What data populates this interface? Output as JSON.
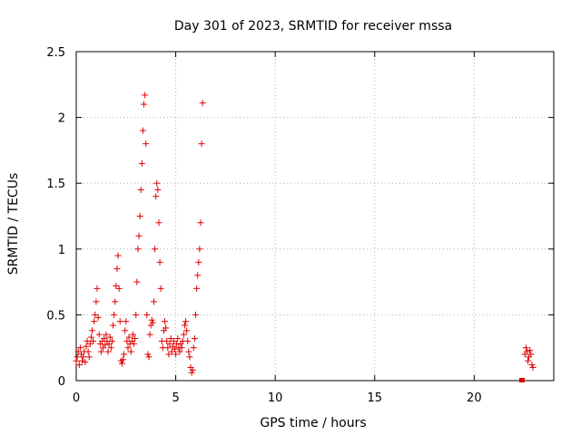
{
  "chart_data": {
    "type": "scatter",
    "title": "Day 301 of 2023, SRMTID for receiver mssa",
    "xlabel": "GPS time / hours",
    "ylabel": "SRMTID / TECUs",
    "xlim": [
      0,
      24
    ],
    "ylim": [
      0,
      2.5
    ],
    "xticks": [
      0,
      5,
      10,
      15,
      20
    ],
    "xtick_labels": [
      "0",
      "5",
      "10",
      "15",
      "20"
    ],
    "yticks": [
      0,
      0.5,
      1,
      1.5,
      2,
      2.5
    ],
    "ytick_labels": [
      "0",
      "0.5",
      "1",
      "1.5",
      "2",
      "2.5"
    ],
    "grid": true,
    "marker": "+",
    "color": "#e00000",
    "series": [
      {
        "name": "SRMTID",
        "points": [
          [
            0.0,
            0.15
          ],
          [
            0.05,
            0.18
          ],
          [
            0.1,
            0.22
          ],
          [
            0.15,
            0.12
          ],
          [
            0.2,
            0.25
          ],
          [
            0.25,
            0.2
          ],
          [
            0.3,
            0.15
          ],
          [
            0.35,
            0.18
          ],
          [
            0.4,
            0.22
          ],
          [
            0.45,
            0.14
          ],
          [
            0.5,
            0.26
          ],
          [
            0.55,
            0.3
          ],
          [
            0.6,
            0.22
          ],
          [
            0.65,
            0.18
          ],
          [
            0.7,
            0.28
          ],
          [
            0.75,
            0.33
          ],
          [
            0.8,
            0.38
          ],
          [
            0.85,
            0.3
          ],
          [
            0.9,
            0.45
          ],
          [
            0.95,
            0.5
          ],
          [
            1.0,
            0.6
          ],
          [
            1.05,
            0.7
          ],
          [
            1.1,
            0.48
          ],
          [
            1.15,
            0.35
          ],
          [
            1.2,
            0.28
          ],
          [
            1.25,
            0.22
          ],
          [
            1.3,
            0.3
          ],
          [
            1.35,
            0.25
          ],
          [
            1.4,
            0.32
          ],
          [
            1.45,
            0.27
          ],
          [
            1.5,
            0.35
          ],
          [
            1.55,
            0.3
          ],
          [
            1.6,
            0.22
          ],
          [
            1.65,
            0.28
          ],
          [
            1.7,
            0.33
          ],
          [
            1.75,
            0.25
          ],
          [
            1.8,
            0.3
          ],
          [
            1.85,
            0.42
          ],
          [
            1.9,
            0.5
          ],
          [
            1.95,
            0.6
          ],
          [
            2.0,
            0.72
          ],
          [
            2.05,
            0.85
          ],
          [
            2.1,
            0.95
          ],
          [
            2.15,
            0.7
          ],
          [
            2.2,
            0.45
          ],
          [
            2.25,
            0.15
          ],
          [
            2.3,
            0.13
          ],
          [
            2.35,
            0.16
          ],
          [
            2.4,
            0.2
          ],
          [
            2.45,
            0.38
          ],
          [
            2.5,
            0.45
          ],
          [
            2.55,
            0.3
          ],
          [
            2.6,
            0.25
          ],
          [
            2.65,
            0.33
          ],
          [
            2.7,
            0.28
          ],
          [
            2.75,
            0.22
          ],
          [
            2.8,
            0.3
          ],
          [
            2.85,
            0.35
          ],
          [
            2.9,
            0.28
          ],
          [
            2.95,
            0.32
          ],
          [
            3.0,
            0.5
          ],
          [
            3.05,
            0.75
          ],
          [
            3.1,
            1.0
          ],
          [
            3.15,
            1.1
          ],
          [
            3.2,
            1.25
          ],
          [
            3.25,
            1.45
          ],
          [
            3.3,
            1.65
          ],
          [
            3.35,
            1.9
          ],
          [
            3.4,
            2.1
          ],
          [
            3.45,
            2.17
          ],
          [
            3.5,
            1.8
          ],
          [
            3.55,
            0.5
          ],
          [
            3.6,
            0.2
          ],
          [
            3.65,
            0.18
          ],
          [
            3.7,
            0.35
          ],
          [
            3.75,
            0.42
          ],
          [
            3.8,
            0.46
          ],
          [
            3.85,
            0.44
          ],
          [
            3.9,
            0.6
          ],
          [
            3.95,
            1.0
          ],
          [
            4.0,
            1.4
          ],
          [
            4.05,
            1.5
          ],
          [
            4.1,
            1.45
          ],
          [
            4.15,
            1.2
          ],
          [
            4.2,
            0.9
          ],
          [
            4.25,
            0.7
          ],
          [
            4.3,
            0.3
          ],
          [
            4.35,
            0.25
          ],
          [
            4.4,
            0.38
          ],
          [
            4.45,
            0.45
          ],
          [
            4.5,
            0.4
          ],
          [
            4.55,
            0.3
          ],
          [
            4.6,
            0.25
          ],
          [
            4.65,
            0.2
          ],
          [
            4.7,
            0.28
          ],
          [
            4.75,
            0.32
          ],
          [
            4.8,
            0.22
          ],
          [
            4.85,
            0.26
          ],
          [
            4.9,
            0.3
          ],
          [
            4.95,
            0.24
          ],
          [
            5.0,
            0.2
          ],
          [
            5.05,
            0.28
          ],
          [
            5.1,
            0.32
          ],
          [
            5.15,
            0.25
          ],
          [
            5.2,
            0.22
          ],
          [
            5.25,
            0.28
          ],
          [
            5.3,
            0.25
          ],
          [
            5.35,
            0.3
          ],
          [
            5.4,
            0.35
          ],
          [
            5.45,
            0.42
          ],
          [
            5.5,
            0.45
          ],
          [
            5.55,
            0.38
          ],
          [
            5.6,
            0.3
          ],
          [
            5.65,
            0.22
          ],
          [
            5.7,
            0.18
          ],
          [
            5.75,
            0.1
          ],
          [
            5.8,
            0.06
          ],
          [
            5.85,
            0.08
          ],
          [
            5.9,
            0.25
          ],
          [
            5.95,
            0.32
          ],
          [
            6.0,
            0.5
          ],
          [
            6.05,
            0.7
          ],
          [
            6.1,
            0.8
          ],
          [
            6.15,
            0.9
          ],
          [
            6.2,
            1.0
          ],
          [
            6.25,
            1.2
          ],
          [
            6.3,
            1.8
          ],
          [
            6.35,
            2.11
          ],
          [
            22.55,
            0.2
          ],
          [
            22.6,
            0.25
          ],
          [
            22.65,
            0.22
          ],
          [
            22.7,
            0.15
          ],
          [
            22.75,
            0.18
          ],
          [
            22.8,
            0.23
          ],
          [
            22.85,
            0.2
          ],
          [
            22.9,
            0.12
          ],
          [
            22.95,
            0.1
          ]
        ],
        "square_markers": [
          [
            22.4,
            0.0
          ]
        ]
      }
    ]
  }
}
